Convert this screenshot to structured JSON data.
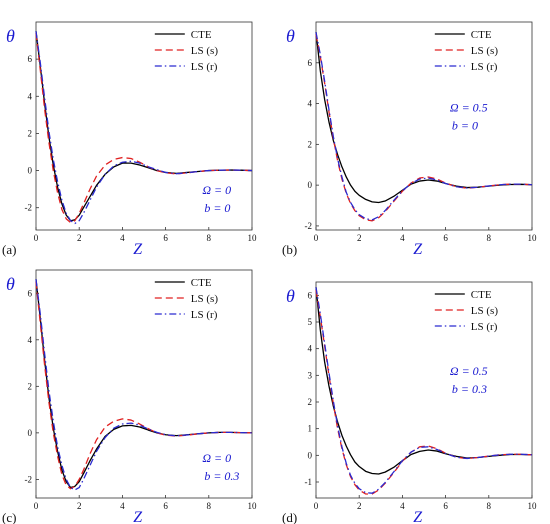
{
  "chart_data": [
    {
      "type": "line",
      "panel_label": "(a)",
      "xlabel": "Z",
      "ylabel": "θ",
      "xlim": [
        0,
        10
      ],
      "ylim": [
        -3.2,
        8
      ],
      "xticks": [
        0,
        2,
        4,
        6,
        8,
        10
      ],
      "yticks": [
        -2,
        0,
        2,
        4,
        6
      ],
      "annotations": [
        "Ω = 0",
        "b = 0"
      ],
      "annotation_position": "bottom-right",
      "legend_position": "top-right",
      "series": [
        {
          "name": "CTE",
          "color": "#000000",
          "style": "solid",
          "x": [
            0,
            0.2,
            0.4,
            0.6,
            0.8,
            1.0,
            1.2,
            1.4,
            1.6,
            1.8,
            2.0,
            2.2,
            2.5,
            2.8,
            3.2,
            3.6,
            4.0,
            4.4,
            4.8,
            5.2,
            5.6,
            6.0,
            6.5,
            7.0,
            7.5,
            8.0,
            8.5,
            9.0,
            9.5,
            10.0
          ],
          "y": [
            7.5,
            5.6,
            3.6,
            1.8,
            0.3,
            -0.9,
            -1.8,
            -2.4,
            -2.7,
            -2.65,
            -2.4,
            -2.0,
            -1.4,
            -0.8,
            -0.2,
            0.2,
            0.4,
            0.4,
            0.3,
            0.15,
            0.0,
            -0.1,
            -0.15,
            -0.1,
            -0.05,
            0.0,
            0.02,
            0.03,
            0.02,
            0.0
          ]
        },
        {
          "name": "LS (s)",
          "color": "#e02020",
          "style": "dashed",
          "x": [
            0,
            0.2,
            0.4,
            0.6,
            0.8,
            1.0,
            1.2,
            1.4,
            1.6,
            1.8,
            2.0,
            2.2,
            2.5,
            2.8,
            3.2,
            3.6,
            4.0,
            4.4,
            4.8,
            5.2,
            5.6,
            6.0,
            6.5,
            7.0,
            7.5,
            8.0,
            8.5,
            9.0,
            9.5,
            10.0
          ],
          "y": [
            7.4,
            5.4,
            3.3,
            1.5,
            0.0,
            -1.2,
            -2.1,
            -2.6,
            -2.8,
            -2.7,
            -2.3,
            -1.8,
            -1.0,
            -0.3,
            0.3,
            0.6,
            0.7,
            0.65,
            0.45,
            0.2,
            0.0,
            -0.12,
            -0.18,
            -0.12,
            -0.05,
            0.0,
            0.02,
            0.03,
            0.02,
            0.0
          ]
        },
        {
          "name": "LS (r)",
          "color": "#2a2ad0",
          "style": "dashdot",
          "x": [
            0,
            0.2,
            0.4,
            0.6,
            0.8,
            1.0,
            1.2,
            1.4,
            1.6,
            1.8,
            2.0,
            2.2,
            2.5,
            2.8,
            3.2,
            3.6,
            4.0,
            4.4,
            4.8,
            5.2,
            5.6,
            6.0,
            6.5,
            7.0,
            7.5,
            8.0,
            8.5,
            9.0,
            9.5,
            10.0
          ],
          "y": [
            7.5,
            5.8,
            3.9,
            2.1,
            0.6,
            -0.6,
            -1.6,
            -2.3,
            -2.7,
            -2.85,
            -2.7,
            -2.3,
            -1.6,
            -0.9,
            -0.2,
            0.25,
            0.45,
            0.5,
            0.4,
            0.2,
            0.05,
            -0.1,
            -0.17,
            -0.12,
            -0.05,
            0.0,
            0.02,
            0.03,
            0.02,
            0.0
          ]
        }
      ]
    },
    {
      "type": "line",
      "panel_label": "(b)",
      "xlabel": "Z",
      "ylabel": "θ",
      "xlim": [
        0,
        10
      ],
      "ylim": [
        -2.2,
        8
      ],
      "xticks": [
        0,
        2,
        4,
        6,
        8,
        10
      ],
      "yticks": [
        -2,
        0,
        2,
        4,
        6
      ],
      "annotations": [
        "Ω = 0.5",
        "b = 0"
      ],
      "annotation_position": "middle-right",
      "legend_position": "top-right",
      "series": [
        {
          "name": "CTE",
          "color": "#000000",
          "style": "solid",
          "x": [
            0,
            0.2,
            0.4,
            0.6,
            0.8,
            1.0,
            1.2,
            1.4,
            1.6,
            1.8,
            2.0,
            2.3,
            2.6,
            2.9,
            3.2,
            3.6,
            4.0,
            4.4,
            4.8,
            5.2,
            5.6,
            6.0,
            6.5,
            7.0,
            7.5,
            8.0,
            8.5,
            9.0,
            9.5,
            10.0
          ],
          "y": [
            7.5,
            5.6,
            4.2,
            3.1,
            2.2,
            1.5,
            0.9,
            0.4,
            0.0,
            -0.3,
            -0.5,
            -0.7,
            -0.82,
            -0.85,
            -0.78,
            -0.55,
            -0.25,
            0.05,
            0.2,
            0.25,
            0.2,
            0.08,
            -0.05,
            -0.12,
            -0.1,
            -0.05,
            0.0,
            0.03,
            0.04,
            0.02
          ]
        },
        {
          "name": "LS (s)",
          "color": "#e02020",
          "style": "dashed",
          "x": [
            0,
            0.2,
            0.4,
            0.6,
            0.8,
            1.0,
            1.2,
            1.4,
            1.6,
            1.8,
            2.0,
            2.3,
            2.6,
            2.9,
            3.2,
            3.6,
            4.0,
            4.4,
            4.8,
            5.2,
            5.6,
            6.0,
            6.5,
            7.0,
            7.5,
            8.0,
            8.5,
            9.0,
            9.5,
            10.0
          ],
          "y": [
            7.4,
            6.3,
            5.0,
            3.6,
            2.3,
            1.2,
            0.3,
            -0.4,
            -0.9,
            -1.25,
            -1.5,
            -1.7,
            -1.75,
            -1.6,
            -1.3,
            -0.8,
            -0.3,
            0.1,
            0.35,
            0.4,
            0.3,
            0.1,
            -0.08,
            -0.15,
            -0.1,
            -0.04,
            0.02,
            0.05,
            0.05,
            0.02
          ]
        },
        {
          "name": "LS (r)",
          "color": "#2a2ad0",
          "style": "dashdot",
          "x": [
            0,
            0.2,
            0.4,
            0.6,
            0.8,
            1.0,
            1.2,
            1.4,
            1.6,
            1.8,
            2.0,
            2.3,
            2.6,
            2.9,
            3.2,
            3.6,
            4.0,
            4.4,
            4.8,
            5.2,
            5.6,
            6.0,
            6.5,
            7.0,
            7.5,
            8.0,
            8.5,
            9.0,
            9.5,
            10.0
          ],
          "y": [
            7.5,
            6.4,
            5.1,
            3.7,
            2.4,
            1.3,
            0.4,
            -0.35,
            -0.85,
            -1.2,
            -1.45,
            -1.65,
            -1.7,
            -1.55,
            -1.25,
            -0.75,
            -0.28,
            0.08,
            0.3,
            0.35,
            0.25,
            0.08,
            -0.08,
            -0.14,
            -0.1,
            -0.04,
            0.02,
            0.05,
            0.05,
            0.02
          ]
        }
      ]
    },
    {
      "type": "line",
      "panel_label": "(c)",
      "xlabel": "Z",
      "ylabel": "θ",
      "xlim": [
        0,
        10
      ],
      "ylim": [
        -2.8,
        7
      ],
      "xticks": [
        0,
        2,
        4,
        6,
        8,
        10
      ],
      "yticks": [
        -2,
        0,
        2,
        4,
        6
      ],
      "annotations": [
        "Ω = 0",
        "b = 0.3"
      ],
      "annotation_position": "bottom-right",
      "legend_position": "top-right",
      "series": [
        {
          "name": "CTE",
          "color": "#000000",
          "style": "solid",
          "x": [
            0,
            0.2,
            0.4,
            0.6,
            0.8,
            1.0,
            1.2,
            1.4,
            1.6,
            1.8,
            2.0,
            2.2,
            2.5,
            2.8,
            3.2,
            3.6,
            4.0,
            4.4,
            4.8,
            5.2,
            5.6,
            6.0,
            6.5,
            7.0,
            7.5,
            8.0,
            8.5,
            9.0,
            9.5,
            10.0
          ],
          "y": [
            6.6,
            4.9,
            3.1,
            1.5,
            0.2,
            -0.8,
            -1.6,
            -2.1,
            -2.35,
            -2.3,
            -2.1,
            -1.75,
            -1.2,
            -0.7,
            -0.15,
            0.15,
            0.3,
            0.32,
            0.25,
            0.12,
            0.0,
            -0.08,
            -0.12,
            -0.08,
            -0.04,
            0.0,
            0.02,
            0.02,
            0.01,
            0.0
          ]
        },
        {
          "name": "LS (s)",
          "color": "#e02020",
          "style": "dashed",
          "x": [
            0,
            0.2,
            0.4,
            0.6,
            0.8,
            1.0,
            1.2,
            1.4,
            1.6,
            1.8,
            2.0,
            2.2,
            2.5,
            2.8,
            3.2,
            3.6,
            4.0,
            4.4,
            4.8,
            5.2,
            5.6,
            6.0,
            6.5,
            7.0,
            7.5,
            8.0,
            8.5,
            9.0,
            9.5,
            10.0
          ],
          "y": [
            6.5,
            4.7,
            2.9,
            1.3,
            0.0,
            -1.0,
            -1.8,
            -2.25,
            -2.4,
            -2.3,
            -2.0,
            -1.6,
            -0.9,
            -0.3,
            0.25,
            0.5,
            0.6,
            0.55,
            0.38,
            0.18,
            0.0,
            -0.1,
            -0.14,
            -0.1,
            -0.04,
            0.0,
            0.02,
            0.02,
            0.01,
            0.0
          ]
        },
        {
          "name": "LS (r)",
          "color": "#2a2ad0",
          "style": "dashdot",
          "x": [
            0,
            0.2,
            0.4,
            0.6,
            0.8,
            1.0,
            1.2,
            1.4,
            1.6,
            1.8,
            2.0,
            2.2,
            2.5,
            2.8,
            3.2,
            3.6,
            4.0,
            4.4,
            4.8,
            5.2,
            5.6,
            6.0,
            6.5,
            7.0,
            7.5,
            8.0,
            8.5,
            9.0,
            9.5,
            10.0
          ],
          "y": [
            6.6,
            5.1,
            3.4,
            1.8,
            0.5,
            -0.6,
            -1.4,
            -2.0,
            -2.35,
            -2.45,
            -2.35,
            -2.0,
            -1.4,
            -0.8,
            -0.2,
            0.2,
            0.38,
            0.42,
            0.33,
            0.16,
            0.02,
            -0.08,
            -0.13,
            -0.09,
            -0.04,
            0.0,
            0.02,
            0.02,
            0.01,
            0.0
          ]
        }
      ]
    },
    {
      "type": "line",
      "panel_label": "(d)",
      "xlabel": "Z",
      "ylabel": "θ",
      "xlim": [
        0,
        10
      ],
      "ylim": [
        -1.6,
        6.5
      ],
      "xticks": [
        0,
        2,
        4,
        6,
        8,
        10
      ],
      "yticks": [
        -1,
        0,
        1,
        2,
        3,
        4,
        5,
        6
      ],
      "annotations": [
        "Ω = 0.5",
        "b = 0.3"
      ],
      "annotation_position": "middle-right",
      "legend_position": "top-right",
      "series": [
        {
          "name": "CTE",
          "color": "#000000",
          "style": "solid",
          "x": [
            0,
            0.2,
            0.4,
            0.6,
            0.8,
            1.0,
            1.2,
            1.4,
            1.6,
            1.8,
            2.0,
            2.3,
            2.6,
            2.9,
            3.2,
            3.6,
            4.0,
            4.4,
            4.8,
            5.2,
            5.6,
            6.0,
            6.5,
            7.0,
            7.5,
            8.0,
            8.5,
            9.0,
            9.5,
            10.0
          ],
          "y": [
            6.3,
            4.7,
            3.5,
            2.6,
            1.85,
            1.25,
            0.75,
            0.35,
            0.02,
            -0.25,
            -0.42,
            -0.6,
            -0.68,
            -0.7,
            -0.63,
            -0.45,
            -0.2,
            0.03,
            0.15,
            0.2,
            0.16,
            0.06,
            -0.04,
            -0.1,
            -0.08,
            -0.04,
            0.0,
            0.03,
            0.03,
            0.02
          ]
        },
        {
          "name": "LS (s)",
          "color": "#e02020",
          "style": "dashed",
          "x": [
            0,
            0.2,
            0.4,
            0.6,
            0.8,
            1.0,
            1.2,
            1.4,
            1.6,
            1.8,
            2.0,
            2.3,
            2.6,
            2.9,
            3.2,
            3.6,
            4.0,
            4.4,
            4.8,
            5.2,
            5.6,
            6.0,
            6.5,
            7.0,
            7.5,
            8.0,
            8.5,
            9.0,
            9.5,
            10.0
          ],
          "y": [
            6.2,
            5.2,
            4.1,
            3.0,
            1.95,
            1.0,
            0.25,
            -0.35,
            -0.8,
            -1.1,
            -1.3,
            -1.45,
            -1.45,
            -1.3,
            -1.05,
            -0.65,
            -0.22,
            0.12,
            0.32,
            0.35,
            0.25,
            0.08,
            -0.07,
            -0.12,
            -0.08,
            -0.03,
            0.02,
            0.04,
            0.04,
            0.02
          ]
        },
        {
          "name": "LS (r)",
          "color": "#2a2ad0",
          "style": "dashdot",
          "x": [
            0,
            0.2,
            0.4,
            0.6,
            0.8,
            1.0,
            1.2,
            1.4,
            1.6,
            1.8,
            2.0,
            2.3,
            2.6,
            2.9,
            3.2,
            3.6,
            4.0,
            4.4,
            4.8,
            5.2,
            5.6,
            6.0,
            6.5,
            7.0,
            7.5,
            8.0,
            8.5,
            9.0,
            9.5,
            10.0
          ],
          "y": [
            6.3,
            5.3,
            4.2,
            3.1,
            2.05,
            1.1,
            0.32,
            -0.3,
            -0.75,
            -1.05,
            -1.25,
            -1.4,
            -1.42,
            -1.27,
            -1.02,
            -0.62,
            -0.2,
            0.12,
            0.3,
            0.32,
            0.22,
            0.07,
            -0.07,
            -0.12,
            -0.08,
            -0.03,
            0.02,
            0.04,
            0.04,
            0.02
          ]
        }
      ]
    }
  ]
}
